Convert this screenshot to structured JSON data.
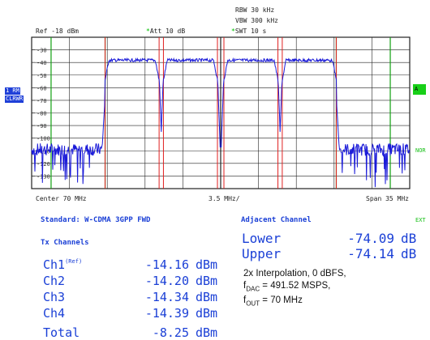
{
  "header": {
    "rbw": "RBW 30 kHz",
    "vbw": "VBW 300 kHz",
    "swt": "SWT 10 s",
    "ref": "Ref -18 dBm",
    "att": "Att  10 dB"
  },
  "side_labels": {
    "trace": "1 RM",
    "clrw": "CLRWR",
    "a": "A",
    "nor": "NOR",
    "ext": "EXT"
  },
  "y_ticks": [
    "-30",
    "-40",
    "-50",
    "-60",
    "-70",
    "-80",
    "-90",
    "-100",
    "-110",
    "-120",
    "-130"
  ],
  "footer": {
    "center": "Center 70 MHz",
    "div": "3.5 MHz/",
    "span": "Span 35 MHz"
  },
  "standard_label": "Standard: W-CDMA 3GPP FWD",
  "tx_title": "Tx Channels",
  "tx_channels": [
    {
      "name": "Ch1",
      "sup": "(Ref)",
      "value": "-14.16",
      "unit": "dBm"
    },
    {
      "name": "Ch2",
      "sup": "",
      "value": "-14.20",
      "unit": "dBm"
    },
    {
      "name": "Ch3",
      "sup": "",
      "value": "-14.34",
      "unit": "dBm"
    },
    {
      "name": "Ch4",
      "sup": "",
      "value": "-14.39",
      "unit": "dBm"
    }
  ],
  "total": {
    "name": "Total",
    "value": "-8.25",
    "unit": "dBm"
  },
  "adjacent": {
    "title": "Adjacent Channel",
    "rows": [
      {
        "name": "Lower",
        "value": "-74.09",
        "unit": "dB"
      },
      {
        "name": "Upper",
        "value": "-74.14",
        "unit": "dB"
      }
    ]
  },
  "notes": {
    "line1": "2x Interpolation, 0 dBFS,",
    "fdac_prefix": "f",
    "fdac_sub": "DAC",
    "fdac_rest": " = 491.52 MSPS,",
    "fout_prefix": "f",
    "fout_sub": "OUT",
    "fout_rest": " = 70 MHz"
  },
  "colors": {
    "trace": "#1a1ad8",
    "grid": "#222222",
    "channel_line": "#e02020",
    "adjacent_line": "#10a010",
    "text_blue": "#1a3fd6"
  },
  "chart_data": {
    "type": "line",
    "x_axis": {
      "center_mhz": 70,
      "span_mhz": 35,
      "div_mhz": 3.5
    },
    "y_axis": {
      "ref_dbm": -18,
      "min_dbm": -138,
      "max_dbm": -18
    },
    "channel_edges_mhz": [
      59.3,
      64.3,
      64.7,
      69.7,
      70.3,
      75.3,
      75.7,
      80.7
    ],
    "adjacent_edges_mhz": [
      54.3,
      59.3,
      80.7,
      85.7
    ],
    "noise_floor_dbm": -107,
    "channel_level_dbm": -35
  }
}
